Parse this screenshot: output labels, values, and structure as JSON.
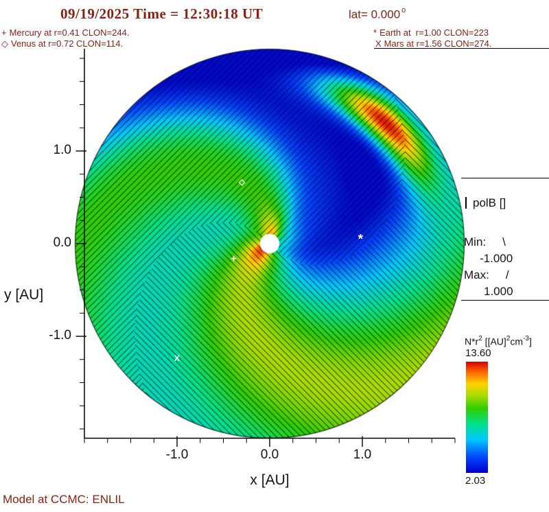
{
  "header": {
    "title_datetime": "09/19/2025 Time = 12:30:18 UT",
    "title_lat": "lat= 0.000",
    "lat_degree": "o",
    "legend": {
      "mercury_label": "Mercury at r=0.41 CLON=244.",
      "venus_label": "Venus at r=0.72 CLON=114.",
      "earth_label": "Earth at  r=1.00 CLON=223",
      "mars_label": "Mars at r=1.56 CLON=274."
    }
  },
  "axes": {
    "x_label": "x [AU]",
    "y_label": "y [AU]"
  },
  "right_panel": {
    "polb_title": "polB []",
    "min_label": "Min:",
    "min_symbol": "\\",
    "min_value": "-1.000",
    "max_label": "Max:",
    "max_symbol": "/",
    "max_value": "1.000",
    "nr2": {
      "p1": "N*r",
      "s1": "2",
      "p2": " [[AU]",
      "s2": "2",
      "p3": "cm",
      "s3": "-3",
      "p4": "]"
    },
    "colorbar_max": "13.60",
    "colorbar_min": "2.03"
  },
  "footer": {
    "model_label": "Model at CCMC: ENLIL"
  },
  "colors": {
    "annotation_text": "#8b2012",
    "axis_text": "#141414"
  },
  "chart_data": {
    "type": "heatmap",
    "projection": "polar-slice",
    "title": "09/19/2025 Time = 12:30:18 UT lat= 0.000 deg",
    "xlabel": "x [AU]",
    "ylabel": "y [AU]",
    "xlim": [
      -2.1,
      2.1
    ],
    "ylim": [
      -2.1,
      2.1
    ],
    "x_tick_labels": [
      "-1.0",
      "0.0",
      "1.0"
    ],
    "y_tick_labels": [
      "1.0",
      "0.0",
      "-1.0"
    ],
    "quantity": "N*r^2 [[AU]^2 cm^-3]",
    "colorbar": {
      "min": 2.03,
      "max": 13.6
    },
    "overlay": {
      "name": "polB",
      "min": -1.0,
      "max": 1.0,
      "negative_hatch": "\\",
      "positive_hatch": "/"
    },
    "model": "ENLIL at CCMC",
    "planets": [
      {
        "name": "Mercury",
        "symbol": "+",
        "r_au": 0.41,
        "clon_deg": 244,
        "x_au": -0.39,
        "y_au": -0.16
      },
      {
        "name": "Venus",
        "symbol": "◇",
        "r_au": 0.72,
        "clon_deg": 114,
        "x_au": -0.3,
        "y_au": 0.67
      },
      {
        "name": "Earth",
        "symbol": "*",
        "r_au": 1.0,
        "clon_deg": 223,
        "x_au": 0.98,
        "y_au": 0.02
      },
      {
        "name": "Mars",
        "symbol": "X",
        "r_au": 1.56,
        "clon_deg": 274,
        "x_au": -1.0,
        "y_au": -1.24
      }
    ],
    "render": {
      "k": -0.85,
      "base": 0.3,
      "arms": [
        {
          "phase": 3.7,
          "width": 0.9,
          "amp": 0.4
        },
        {
          "phase": 1.25,
          "width": 0.8,
          "amp": 0.3
        }
      ],
      "voids": [
        {
          "phase": 5.78,
          "width": 0.62,
          "amp": -0.35
        },
        {
          "phase": 0.45,
          "width": 0.55,
          "amp": -0.3
        }
      ],
      "void_radial": {
        "a": 0.5,
        "b": 0.3,
        "cap": 1.1
      },
      "core": {
        "amp": 0.3,
        "sigma": 0.28
      },
      "blob": {
        "theta": 0.84,
        "r": 1.8,
        "sigma_theta": 0.42,
        "sigma_r": 0.22,
        "amp": 1.0
      },
      "polarity": {
        "k": -0.85,
        "offset": 0.9
      },
      "hatch": {
        "spacing": 9,
        "thickness": 1.5,
        "alpha": 0.5
      },
      "sun_radius_au": 0.105,
      "outer_radius_au": 2.1,
      "colormap": [
        [
          0.0,
          0,
          0,
          200
        ],
        [
          0.14,
          0,
          70,
          255
        ],
        [
          0.3,
          0,
          200,
          255
        ],
        [
          0.44,
          0,
          225,
          140
        ],
        [
          0.58,
          50,
          205,
          0
        ],
        [
          0.7,
          170,
          220,
          0
        ],
        [
          0.8,
          255,
          210,
          0
        ],
        [
          0.9,
          255,
          110,
          0
        ],
        [
          1.0,
          215,
          0,
          0
        ]
      ]
    }
  }
}
